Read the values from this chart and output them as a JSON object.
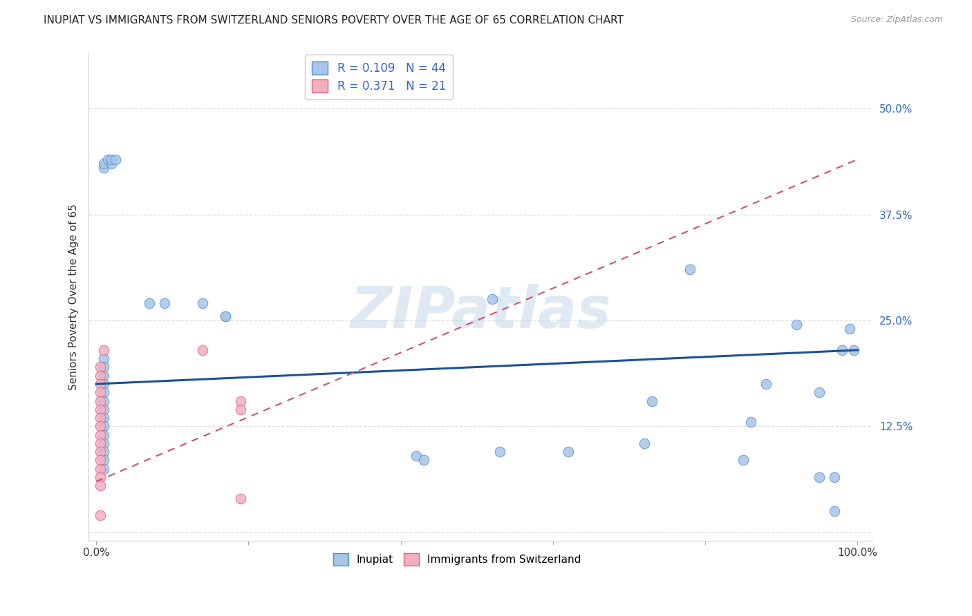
{
  "title": "INUPIAT VS IMMIGRANTS FROM SWITZERLAND SENIORS POVERTY OVER THE AGE OF 65 CORRELATION CHART",
  "source": "Source: ZipAtlas.com",
  "ylabel": "Seniors Poverty Over the Age of 65",
  "x_ticks": [
    0.0,
    0.2,
    0.4,
    0.6,
    0.8,
    1.0
  ],
  "x_tick_labels": [
    "0.0%",
    "",
    "",
    "",
    "",
    "100.0%"
  ],
  "y_ticks": [
    0.0,
    0.125,
    0.25,
    0.375,
    0.5
  ],
  "y_tick_labels": [
    "",
    "12.5%",
    "25.0%",
    "37.5%",
    "50.0%"
  ],
  "xlim": [
    -0.01,
    1.02
  ],
  "ylim": [
    -0.01,
    0.565
  ],
  "inupiat_R": "0.109",
  "inupiat_N": "44",
  "swiss_R": "0.371",
  "swiss_N": "21",
  "inupiat_color": "#a8c4e8",
  "swiss_color": "#f0b0c0",
  "inupiat_dot_edge": "#5090d0",
  "swiss_dot_edge": "#e06080",
  "inupiat_line_color": "#1a5296",
  "swiss_line_color": "#d05070",
  "background_color": "#ffffff",
  "watermark": "ZIPatlas",
  "inupiat_x": [
    0.01,
    0.01,
    0.015,
    0.02,
    0.02,
    0.025,
    0.01,
    0.01,
    0.01,
    0.01,
    0.01,
    0.01,
    0.01,
    0.01,
    0.01,
    0.01,
    0.01,
    0.01,
    0.01,
    0.01,
    0.07,
    0.09,
    0.14,
    0.17,
    0.17,
    0.42,
    0.43,
    0.52,
    0.53,
    0.62,
    0.72,
    0.73,
    0.78,
    0.85,
    0.86,
    0.88,
    0.92,
    0.95,
    0.95,
    0.97,
    0.97,
    0.98,
    0.99,
    0.995
  ],
  "inupiat_y": [
    0.43,
    0.435,
    0.44,
    0.435,
    0.44,
    0.44,
    0.205,
    0.195,
    0.185,
    0.175,
    0.165,
    0.155,
    0.145,
    0.135,
    0.125,
    0.115,
    0.105,
    0.095,
    0.085,
    0.075,
    0.27,
    0.27,
    0.27,
    0.255,
    0.255,
    0.09,
    0.085,
    0.275,
    0.095,
    0.095,
    0.105,
    0.155,
    0.31,
    0.085,
    0.13,
    0.175,
    0.245,
    0.165,
    0.065,
    0.025,
    0.065,
    0.215,
    0.24,
    0.215
  ],
  "swiss_x": [
    0.005,
    0.005,
    0.005,
    0.005,
    0.005,
    0.005,
    0.005,
    0.005,
    0.005,
    0.005,
    0.005,
    0.005,
    0.005,
    0.005,
    0.01,
    0.14,
    0.19,
    0.19,
    0.19,
    0.005,
    0.005
  ],
  "swiss_y": [
    0.195,
    0.185,
    0.175,
    0.165,
    0.155,
    0.145,
    0.135,
    0.125,
    0.115,
    0.105,
    0.095,
    0.085,
    0.075,
    0.065,
    0.215,
    0.215,
    0.155,
    0.145,
    0.04,
    0.02,
    0.055
  ],
  "inupiat_line_x0": 0.0,
  "inupiat_line_y0": 0.175,
  "inupiat_line_x1": 1.0,
  "inupiat_line_y1": 0.215,
  "swiss_line_x0": 0.0,
  "swiss_line_y0": 0.06,
  "swiss_line_x1": 1.0,
  "swiss_line_y1": 0.44
}
